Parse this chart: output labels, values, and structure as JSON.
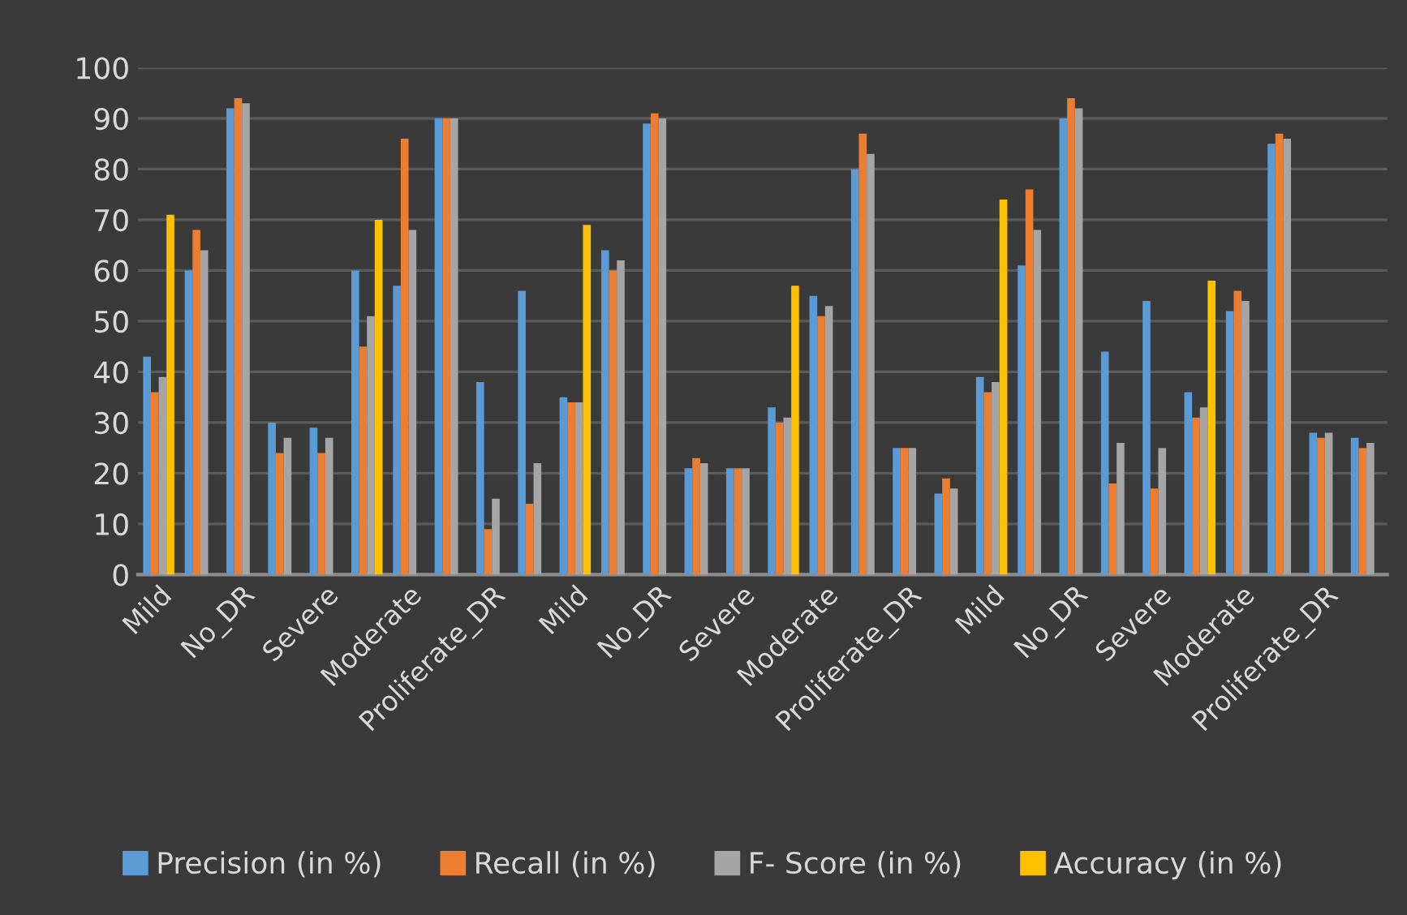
{
  "chart_data": {
    "type": "bar",
    "categories": [
      "Mild",
      null,
      "No_DR",
      null,
      "Severe",
      null,
      "Moderate",
      null,
      "Proliferate_DR",
      null,
      "Mild",
      null,
      "No_DR",
      null,
      "Severe",
      null,
      "Moderate",
      null,
      "Proliferate_DR",
      null,
      "Mild",
      null,
      "No_DR",
      null,
      "Severe",
      null,
      "Moderate",
      null,
      "Proliferate_DR",
      null
    ],
    "series": [
      {
        "name": "Precision (in %)",
        "color": "#5b9bd5",
        "values": [
          43,
          60,
          92,
          30,
          29,
          60,
          57,
          90,
          38,
          56,
          35,
          64,
          89,
          21,
          21,
          33,
          55,
          80,
          25,
          16,
          39,
          61,
          90,
          44,
          54,
          36,
          52,
          85,
          28,
          27
        ]
      },
      {
        "name": "Recall (in %)",
        "color": "#ed7d31",
        "values": [
          36,
          68,
          94,
          24,
          24,
          45,
          86,
          90,
          9,
          14,
          34,
          60,
          91,
          23,
          21,
          30,
          51,
          87,
          25,
          19,
          36,
          76,
          94,
          18,
          17,
          31,
          56,
          87,
          27,
          25
        ]
      },
      {
        "name": "F- Score (in %)",
        "color": "#a5a5a5",
        "values": [
          39,
          64,
          93,
          27,
          27,
          51,
          68,
          90,
          15,
          22,
          34,
          62,
          90,
          22,
          21,
          31,
          53,
          83,
          25,
          17,
          38,
          68,
          92,
          26,
          25,
          33,
          54,
          86,
          28,
          26
        ]
      },
      {
        "name": "Accuracy (in %)",
        "color": "#ffc000",
        "values": [
          71,
          null,
          null,
          null,
          null,
          70,
          null,
          null,
          null,
          null,
          69,
          null,
          null,
          null,
          null,
          57,
          null,
          null,
          null,
          null,
          74,
          null,
          null,
          null,
          null,
          58,
          null,
          null,
          null,
          null
        ]
      }
    ],
    "ylim": [
      0,
      100
    ],
    "yticks": [
      0,
      10,
      20,
      30,
      40,
      50,
      60,
      70,
      80,
      90,
      100
    ],
    "grid": "y",
    "legend": "bottom"
  }
}
